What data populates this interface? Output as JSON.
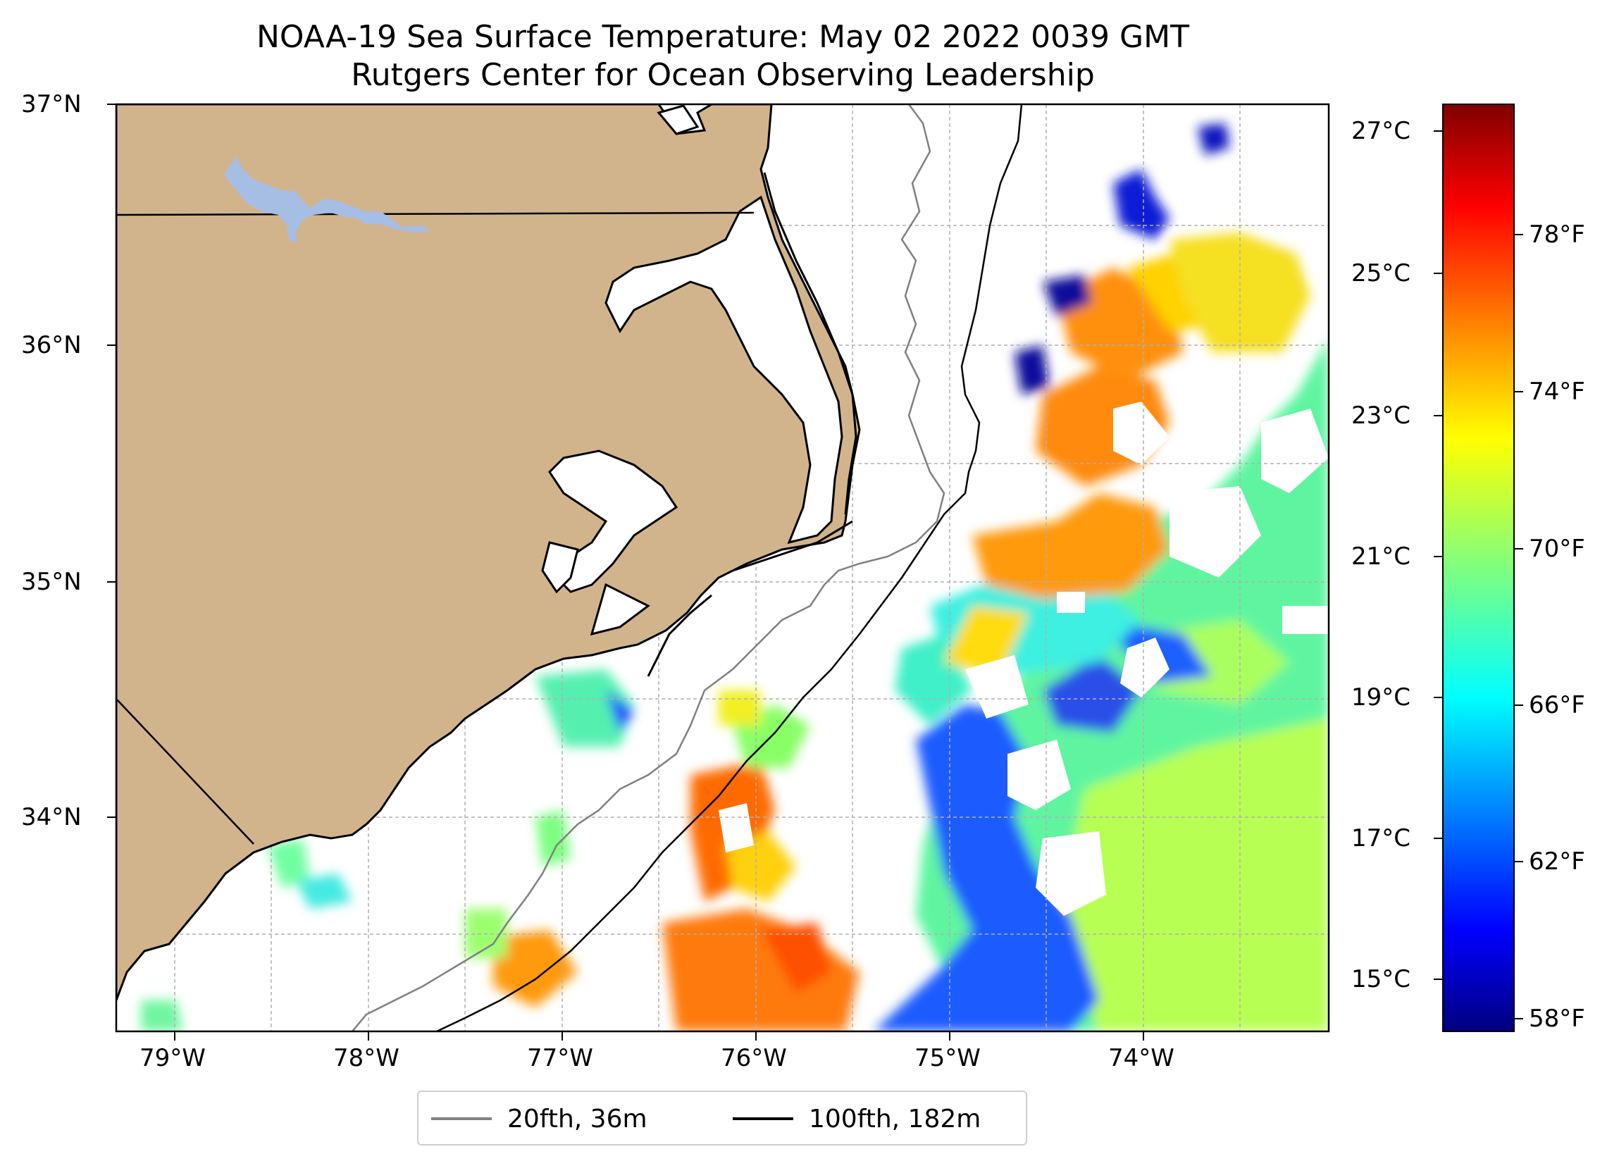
{
  "title": {
    "line1": "NOAA-19 Sea Surface Temperature: May 02 2022 0039 GMT",
    "line2": "Rutgers Center for Ocean Observing Leadership"
  },
  "map": {
    "lon_range": [
      -79.3,
      -73.05
    ],
    "lat_range": [
      33.1,
      37.0
    ],
    "lon_ticks": [
      "79°W",
      "78°W",
      "77°W",
      "76°W",
      "75°W",
      "74°W"
    ],
    "lat_ticks": [
      "37°N",
      "36°N",
      "35°N",
      "34°N"
    ],
    "grid": true,
    "land_color": "#d2b48c",
    "lake_color": "#a6bde4"
  },
  "colorbar": {
    "colormap": "jet",
    "celsius_range": [
      14.5,
      27.5
    ],
    "celsius_ticks": [
      "27°C",
      "25°C",
      "23°C",
      "21°C",
      "19°C",
      "17°C",
      "15°C"
    ],
    "fahrenheit_ticks": [
      "78°F",
      "74°F",
      "70°F",
      "66°F",
      "62°F",
      "58°F"
    ]
  },
  "legend": {
    "items": [
      {
        "label": "20fth, 36m",
        "color": "#808080"
      },
      {
        "label": "100fth, 182m",
        "color": "#000000"
      }
    ]
  }
}
